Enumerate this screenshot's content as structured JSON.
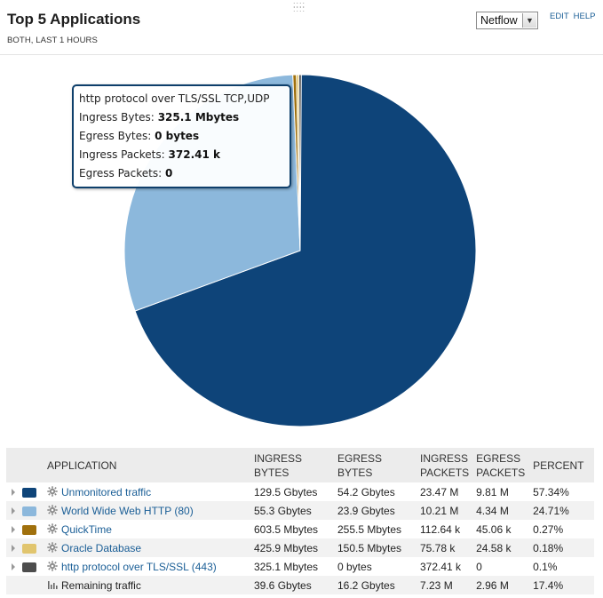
{
  "header": {
    "title": "Top 5 Applications",
    "subtitle": "BOTH, LAST 1 HOURS",
    "source_select": "Netflow",
    "edit_label": "EDIT",
    "help_label": "HELP"
  },
  "tooltip": {
    "name": "http protocol over TLS/SSL TCP,UDP",
    "ingress_bytes_label": "Ingress Bytes:",
    "ingress_bytes": "325.1 Mbytes",
    "egress_bytes_label": "Egress Bytes:",
    "egress_bytes": "0 bytes",
    "ingress_packets_label": "Ingress Packets:",
    "ingress_packets": "372.41 k",
    "egress_packets_label": "Egress Packets:",
    "egress_packets": "0"
  },
  "table": {
    "headers": {
      "application": "APPLICATION",
      "ingress_bytes_1": "INGRESS",
      "ingress_bytes_2": "BYTES",
      "egress_bytes_1": "EGRESS",
      "egress_bytes_2": "BYTES",
      "ingress_packets_1": "INGRESS",
      "ingress_packets_2": "PACKETS",
      "egress_packets_1": "EGRESS",
      "egress_packets_2": "PACKETS",
      "percent": "PERCENT"
    },
    "rows": [
      {
        "name": "Unmonitored traffic",
        "color": "#0e4479",
        "ingress_bytes": "129.5 Gbytes",
        "egress_bytes": "54.2 Gbytes",
        "ingress_packets": "23.47 M",
        "egress_packets": "9.81 M",
        "percent": "57.34%"
      },
      {
        "name": "World Wide Web HTTP (80)",
        "color": "#8cb8dc",
        "ingress_bytes": "55.3 Gbytes",
        "egress_bytes": "23.9 Gbytes",
        "ingress_packets": "10.21 M",
        "egress_packets": "4.34 M",
        "percent": "24.71%"
      },
      {
        "name": "QuickTime",
        "color": "#a0700c",
        "ingress_bytes": "603.5 Mbytes",
        "egress_bytes": "255.5 Mbytes",
        "ingress_packets": "112.64 k",
        "egress_packets": "45.06 k",
        "percent": "0.27%"
      },
      {
        "name": "Oracle Database",
        "color": "#e1c56e",
        "ingress_bytes": "425.9 Mbytes",
        "egress_bytes": "150.5 Mbytes",
        "ingress_packets": "75.78 k",
        "egress_packets": "24.58 k",
        "percent": "0.18%"
      },
      {
        "name": "http protocol over TLS/SSL (443)",
        "color": "#4d4d4d",
        "ingress_bytes": "325.1 Mbytes",
        "egress_bytes": "0 bytes",
        "ingress_packets": "372.41 k",
        "egress_packets": "0",
        "percent": "0.1%"
      }
    ],
    "remaining": {
      "name": "Remaining traffic",
      "ingress_bytes": "39.6 Gbytes",
      "egress_bytes": "16.2 Gbytes",
      "ingress_packets": "7.23 M",
      "egress_packets": "2.96 M",
      "percent": "17.4%"
    }
  },
  "chart_data": {
    "type": "pie",
    "labels": [
      "Unmonitored traffic",
      "World Wide Web HTTP (80)",
      "QuickTime",
      "Oracle Database",
      "http protocol over TLS/SSL (443)"
    ],
    "values": [
      57.34,
      24.71,
      0.27,
      0.18,
      0.1
    ],
    "colors": [
      "#0e4479",
      "#8cb8dc",
      "#a0700c",
      "#e1c56e",
      "#4d4d4d"
    ]
  },
  "icons": {
    "app": "gear-icon",
    "remaining": "bar-chart-icon",
    "expand": "triangle-right-icon"
  }
}
